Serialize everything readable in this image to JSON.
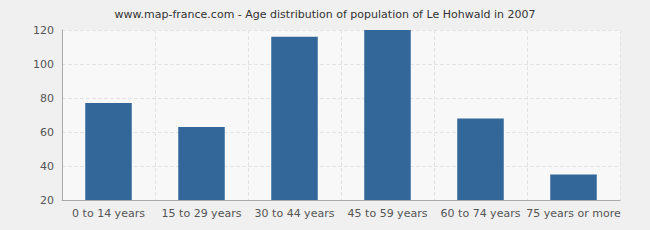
{
  "chart_data": {
    "type": "bar",
    "title": "www.map-france.com - Age distribution of population of Le Hohwald in 2007",
    "categories": [
      "0 to 14 years",
      "15 to 29 years",
      "30 to 44 years",
      "45 to 59 years",
      "60 to 74 years",
      "75 years or more"
    ],
    "values": [
      77,
      63,
      116,
      120,
      68,
      35
    ],
    "color": "#336699",
    "ylim": [
      20,
      120
    ],
    "yticks": [
      20,
      40,
      60,
      80,
      100,
      120
    ],
    "grid": true
  }
}
